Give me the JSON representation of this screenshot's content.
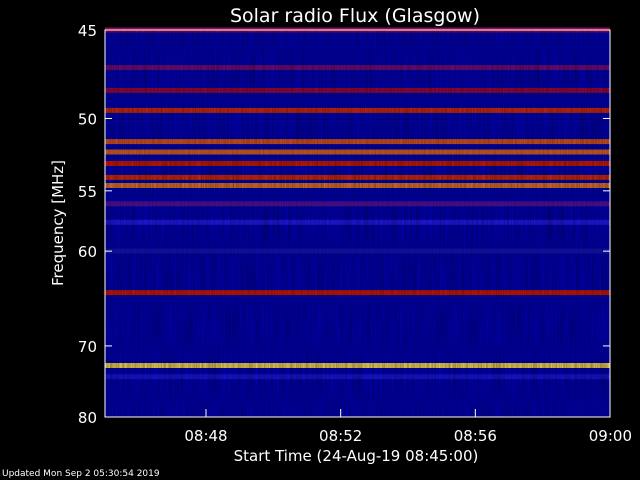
{
  "chart_data": {
    "type": "heatmap",
    "title": "Solar radio Flux (Glasgow)",
    "xlabel": "Start Time (24-Aug-19 08:45:00)",
    "ylabel": "Frequency [MHz]",
    "x_ticks": [
      "08:48",
      "08:52",
      "08:56",
      "09:00"
    ],
    "x_range": [
      "08:45:00",
      "09:00:00"
    ],
    "y_ticks": [
      45,
      50,
      55,
      60,
      70,
      80
    ],
    "y_scale": "reciprocal",
    "y_range": [
      45,
      80
    ],
    "colormap": [
      "#000000",
      "#1a1aff",
      "#cc0000",
      "#ffff66"
    ],
    "bands": [
      {
        "freq": 45.0,
        "intensity": 0.55
      },
      {
        "freq": 47.0,
        "intensity": 0.5
      },
      {
        "freq": 48.3,
        "intensity": 0.58
      },
      {
        "freq": 49.5,
        "intensity": 0.72
      },
      {
        "freq": 51.5,
        "intensity": 0.78
      },
      {
        "freq": 52.2,
        "intensity": 0.8
      },
      {
        "freq": 53.0,
        "intensity": 0.7
      },
      {
        "freq": 54.0,
        "intensity": 0.72
      },
      {
        "freq": 54.6,
        "intensity": 0.82
      },
      {
        "freq": 56.0,
        "intensity": 0.45
      },
      {
        "freq": 57.5,
        "intensity": 0.35
      },
      {
        "freq": 60.0,
        "intensity": 0.25
      },
      {
        "freq": 64.0,
        "intensity": 0.7
      },
      {
        "freq": 72.5,
        "intensity": 0.95
      },
      {
        "freq": 74.0,
        "intensity": 0.3
      }
    ]
  },
  "footer": {
    "updated": "Updated Mon Sep  2 05:30:54 2019"
  }
}
